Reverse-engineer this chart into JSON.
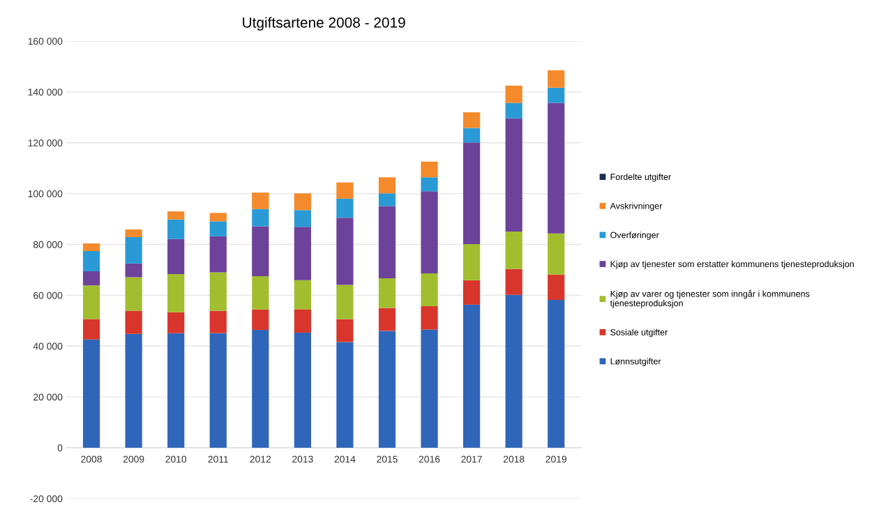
{
  "chart_data": {
    "type": "bar",
    "title": "Utgiftsartene 2008 - 2019",
    "stacked": true,
    "categories": [
      "2008",
      "2009",
      "2010",
      "2011",
      "2012",
      "2013",
      "2014",
      "2015",
      "2016",
      "2017",
      "2018",
      "2019"
    ],
    "series": [
      {
        "name": "Lønnsutgifter",
        "color": "#3066ba",
        "values": [
          42600,
          44800,
          45100,
          45100,
          46400,
          45300,
          41600,
          46000,
          46500,
          56300,
          60200,
          58200
        ]
      },
      {
        "name": "Sosiale utgifter",
        "color": "#d8362c",
        "values": [
          8000,
          9100,
          8200,
          8800,
          8000,
          9200,
          9000,
          9000,
          9200,
          9600,
          10100,
          9900
        ]
      },
      {
        "name": "Kjøp av varer og tjenester som inngår i kommunens tjenesteproduksjon",
        "color": "#a2be2e",
        "values": [
          13300,
          13200,
          15000,
          15100,
          13100,
          11400,
          13500,
          11700,
          12900,
          14200,
          14800,
          16200
        ]
      },
      {
        "name": "Kjøp av tjenester som erstatter kommunens tjenesteproduksjon",
        "color": "#6d429a",
        "values": [
          5500,
          5400,
          13800,
          14200,
          19600,
          21000,
          26400,
          28400,
          32300,
          40000,
          44500,
          51400
        ]
      },
      {
        "name": "Overføringer",
        "color": "#2a9ad6",
        "values": [
          8000,
          10400,
          7700,
          5900,
          6800,
          6600,
          7500,
          5000,
          5500,
          5700,
          6100,
          6000
        ]
      },
      {
        "name": "Avskrivninger",
        "color": "#f48a2c",
        "values": [
          3000,
          3000,
          3200,
          3300,
          6500,
          6600,
          6400,
          6300,
          6200,
          6200,
          6800,
          6800
        ]
      },
      {
        "name": "Fordelte utgifter",
        "color": "#1b2d52",
        "values": [
          0,
          0,
          0,
          0,
          0,
          0,
          0,
          0,
          0,
          0,
          0,
          0
        ]
      }
    ],
    "ylim": [
      -20000,
      160000
    ],
    "yticks": [
      {
        "value": -20000,
        "label": "-20 000"
      },
      {
        "value": 0,
        "label": "0"
      },
      {
        "value": 20000,
        "label": "20 000"
      },
      {
        "value": 40000,
        "label": "40 000"
      },
      {
        "value": 60000,
        "label": "60 000"
      },
      {
        "value": 80000,
        "label": "80 000"
      },
      {
        "value": 100000,
        "label": "100 000"
      },
      {
        "value": 120000,
        "label": "120 000"
      },
      {
        "value": 140000,
        "label": "140 000"
      },
      {
        "value": 160000,
        "label": "160 000"
      }
    ],
    "grid": "y",
    "legend": "right"
  }
}
